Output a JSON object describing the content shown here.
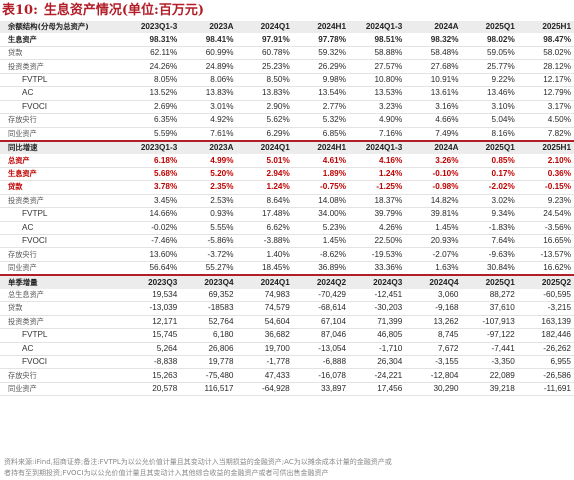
{
  "title": {
    "label": "表10:",
    "text": "生息资产情况(单位:百万元)"
  },
  "table1": {
    "header": [
      "余额结构(分母为总资产)",
      "2023Q1-3",
      "2023A",
      "2024Q1",
      "2024H1",
      "2024Q1-3",
      "2024A",
      "2025Q1",
      "2025H1"
    ],
    "rows": [
      {
        "label": "生息资产",
        "style": "em",
        "values": [
          "98.31%",
          "98.41%",
          "97.91%",
          "97.78%",
          "98.51%",
          "98.32%",
          "98.02%",
          "98.47%"
        ]
      },
      {
        "label": "贷款",
        "style": "",
        "values": [
          "62.11%",
          "60.99%",
          "60.78%",
          "59.32%",
          "58.88%",
          "58.48%",
          "59.05%",
          "58.02%"
        ]
      },
      {
        "label": "投资类资产",
        "style": "",
        "values": [
          "24.26%",
          "24.89%",
          "25.23%",
          "26.29%",
          "27.57%",
          "27.68%",
          "25.77%",
          "28.12%"
        ]
      },
      {
        "label": "FVTPL",
        "style": "lvl2",
        "values": [
          "8.05%",
          "8.06%",
          "8.50%",
          "9.98%",
          "10.80%",
          "10.91%",
          "9.22%",
          "12.17%"
        ]
      },
      {
        "label": "AC",
        "style": "lvl2",
        "values": [
          "13.52%",
          "13.83%",
          "13.83%",
          "13.54%",
          "13.53%",
          "13.61%",
          "13.46%",
          "12.79%"
        ]
      },
      {
        "label": "FVOCI",
        "style": "lvl2",
        "values": [
          "2.69%",
          "3.01%",
          "2.90%",
          "2.77%",
          "3.23%",
          "3.16%",
          "3.10%",
          "3.17%"
        ]
      },
      {
        "label": "存放央行",
        "style": "",
        "values": [
          "6.35%",
          "4.92%",
          "5.62%",
          "5.32%",
          "4.90%",
          "4.66%",
          "5.04%",
          "4.50%"
        ]
      },
      {
        "label": "同业资产",
        "style": "",
        "values": [
          "5.59%",
          "7.61%",
          "6.29%",
          "6.85%",
          "7.16%",
          "7.49%",
          "8.16%",
          "7.82%"
        ]
      }
    ]
  },
  "table2": {
    "header": [
      "同比增速",
      "2023Q1-3",
      "2023A",
      "2024Q1",
      "2024H1",
      "2024Q1-3",
      "2024A",
      "2025Q1",
      "2025H1"
    ],
    "rows": [
      {
        "label": "总资产",
        "style": "red",
        "values": [
          "6.18%",
          "4.99%",
          "5.01%",
          "4.61%",
          "4.16%",
          "3.26%",
          "0.85%",
          "2.10%"
        ]
      },
      {
        "label": "生息资产",
        "style": "red",
        "values": [
          "5.68%",
          "5.20%",
          "2.94%",
          "1.89%",
          "1.24%",
          "-0.10%",
          "0.17%",
          "0.36%"
        ]
      },
      {
        "label": "贷款",
        "style": "red",
        "values": [
          "3.78%",
          "2.35%",
          "1.24%",
          "-0.75%",
          "-1.25%",
          "-0.98%",
          "-2.02%",
          "-0.15%"
        ]
      },
      {
        "label": "投资类资产",
        "style": "",
        "values": [
          "3.45%",
          "2.53%",
          "8.64%",
          "14.08%",
          "18.37%",
          "14.82%",
          "3.02%",
          "9.23%"
        ]
      },
      {
        "label": "FVTPL",
        "style": "lvl2",
        "values": [
          "14.66%",
          "0.93%",
          "17.48%",
          "34.00%",
          "39.79%",
          "39.81%",
          "9.34%",
          "24.54%"
        ]
      },
      {
        "label": "AC",
        "style": "lvl2",
        "values": [
          "-0.02%",
          "5.55%",
          "6.62%",
          "5.23%",
          "4.26%",
          "1.45%",
          "-1.83%",
          "-3.56%"
        ]
      },
      {
        "label": "FVOCI",
        "style": "lvl2",
        "values": [
          "-7.46%",
          "-5.86%",
          "-3.88%",
          "1.45%",
          "22.50%",
          "20.93%",
          "7.64%",
          "16.65%"
        ]
      },
      {
        "label": "存放央行",
        "style": "",
        "values": [
          "13.60%",
          "-3.72%",
          "1.40%",
          "-8.62%",
          "-19.53%",
          "-2.07%",
          "-9.63%",
          "-13.57%"
        ]
      },
      {
        "label": "同业资产",
        "style": "",
        "values": [
          "56.64%",
          "55.27%",
          "18.45%",
          "36.89%",
          "33.36%",
          "1.63%",
          "30.84%",
          "16.62%"
        ]
      }
    ]
  },
  "table3": {
    "header": [
      "单季增量",
      "2023Q3",
      "2023Q4",
      "2024Q1",
      "2024Q2",
      "2024Q3",
      "2024Q4",
      "2025Q1",
      "2025Q2"
    ],
    "rows": [
      {
        "label": "总生息资产",
        "style": "",
        "values": [
          "19,534",
          "69,352",
          "74,983",
          "-70,429",
          "-12,451",
          "3,060",
          "88,272",
          "-60,595"
        ]
      },
      {
        "label": "贷款",
        "style": "",
        "values": [
          "-13,039",
          "-18583",
          "74,579",
          "-68,614",
          "-30,203",
          "-9,168",
          "37,610",
          "-3,215"
        ]
      },
      {
        "label": "投资类资产",
        "style": "",
        "values": [
          "12,171",
          "52,764",
          "54,604",
          "67,104",
          "71,399",
          "13,262",
          "-107,913",
          "163,139"
        ]
      },
      {
        "label": "FVTPL",
        "style": "lvl2",
        "values": [
          "15,745",
          "6,180",
          "36,682",
          "87,046",
          "46,805",
          "8,745",
          "-97,122",
          "182,446"
        ]
      },
      {
        "label": "AC",
        "style": "lvl2",
        "values": [
          "5,264",
          "26,806",
          "19,700",
          "-13,054",
          "-1,710",
          "7,672",
          "-7,441",
          "-26,262"
        ]
      },
      {
        "label": "FVOCI",
        "style": "lvl2",
        "values": [
          "-8,838",
          "19,778",
          "-1,778",
          "-6,888",
          "26,304",
          "-3,155",
          "-3,350",
          "6,955"
        ]
      },
      {
        "label": "存放央行",
        "style": "",
        "values": [
          "15,263",
          "-75,480",
          "47,433",
          "-16,078",
          "-24,221",
          "-12,804",
          "22,089",
          "-26,586"
        ]
      },
      {
        "label": "同业资产",
        "style": "",
        "values": [
          "20,578",
          "116,517",
          "-64,928",
          "33,897",
          "17,456",
          "30,290",
          "39,218",
          "-11,691"
        ]
      }
    ]
  },
  "footnote": {
    "line1": "资料来源:iFind,招商证券;备注:FVTPL为以公允价值计量且其变动计入当期损益的金融资产;AC为以摊余成本计量的金融资产或",
    "line2": "者持有至到期投资;FVOCI为以公允价值计量且其变动计入其他综合收益的金融资产或者可供出售金融资产"
  },
  "colors": {
    "accent": "#b21d27",
    "header_bg": "#ececec",
    "highlight_red": "#c00000"
  }
}
